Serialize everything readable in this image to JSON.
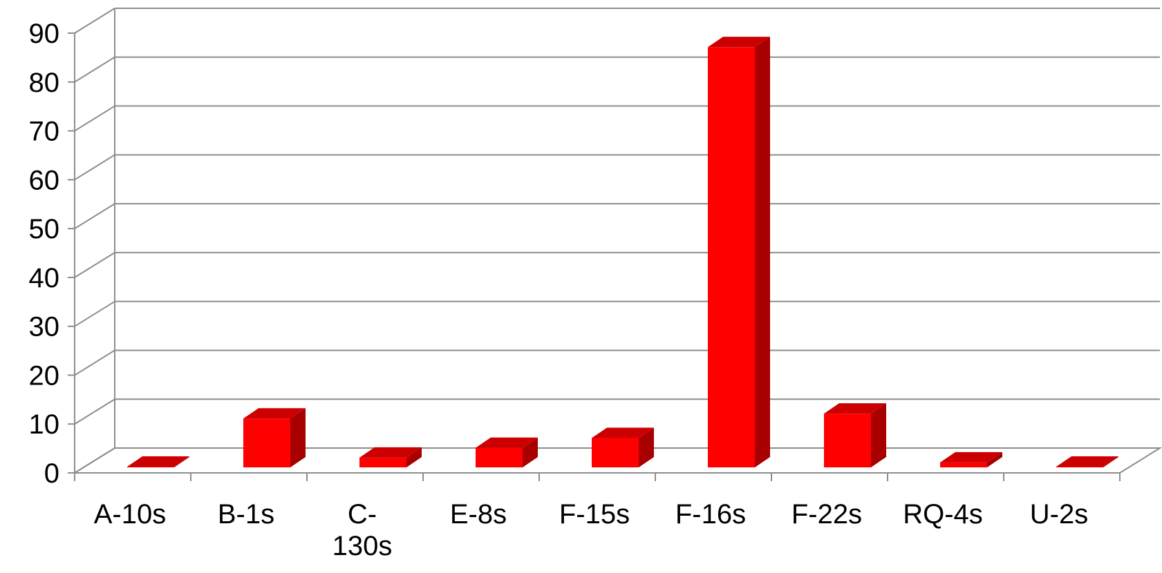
{
  "chart_data": {
    "type": "bar",
    "title": "",
    "xlabel": "",
    "ylabel": "",
    "categories": [
      "A-10s",
      "B-1s",
      "C-130s",
      "E-8s",
      "F-15s",
      "F-16s",
      "F-22s",
      "RQ-4s",
      "U-2s"
    ],
    "category_labels": [
      [
        "A-10s"
      ],
      [
        "B-1s"
      ],
      [
        "C-",
        "130s"
      ],
      [
        "E-8s"
      ],
      [
        "F-15s"
      ],
      [
        "F-16s"
      ],
      [
        "F-22s"
      ],
      [
        "RQ-4s"
      ],
      [
        "U-2s"
      ]
    ],
    "values": [
      0,
      10,
      2,
      4,
      6,
      86,
      11,
      1,
      0
    ],
    "ylim": [
      0,
      90
    ],
    "yticks": [
      0,
      10,
      20,
      30,
      40,
      50,
      60,
      70,
      80,
      90
    ],
    "grid": true,
    "three_d": true,
    "colors": {
      "bar_front": "#ff0000",
      "bar_side": "#a80000",
      "bar_top": "#cc0000",
      "grid": "#8c8c8c"
    }
  }
}
